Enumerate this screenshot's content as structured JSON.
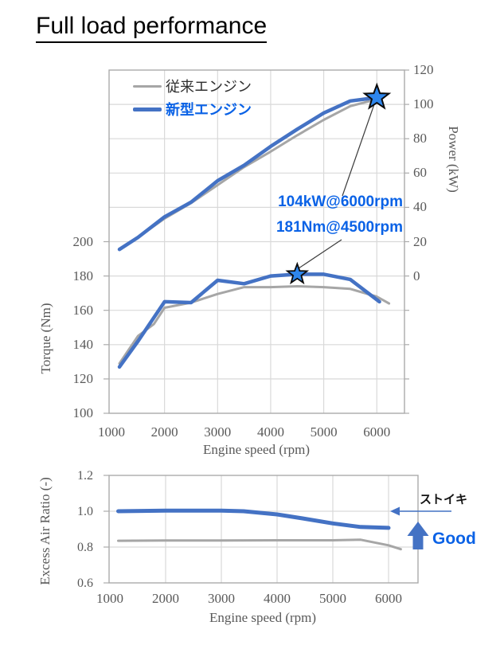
{
  "title": "Full load performance",
  "colors": {
    "new_engine": "#4472C4",
    "old_engine": "#A6A6A6",
    "accent_text": "#0A62E6",
    "star_fill": "#2E86EC",
    "grid": "#D9D9D9",
    "axis": "#ABABAB",
    "tick_text": "#595959"
  },
  "chart_data": [
    {
      "type": "line",
      "title": "",
      "x": {
        "label": "Engine speed (rpm)",
        "ticks": [
          1000,
          2000,
          3000,
          4000,
          5000,
          6000
        ],
        "range": [
          955,
          6525
        ]
      },
      "y_left": {
        "label": "Torque  (Nm)",
        "ticks": [
          200,
          180,
          160,
          140,
          120,
          100
        ],
        "range": [
          100,
          200
        ]
      },
      "y_right": {
        "label": "Power  (kW)",
        "ticks": [
          120,
          100,
          80,
          60,
          40,
          20,
          0
        ],
        "range": [
          0,
          120
        ]
      },
      "legend_position": "top-left-inside",
      "grid": true,
      "series": [
        {
          "name": "従来エンジン",
          "axis": "power",
          "color": "#A6A6A6",
          "points": [
            [
              1150,
              15.5
            ],
            [
              1500,
              22.5
            ],
            [
              2000,
              33.5
            ],
            [
              2500,
              42.5
            ],
            [
              3000,
              53
            ],
            [
              3500,
              63.5
            ],
            [
              4000,
              72.5
            ],
            [
              4500,
              82
            ],
            [
              5000,
              91
            ],
            [
              5500,
              99
            ],
            [
              6000,
              103
            ]
          ]
        },
        {
          "name": "新型エンジン",
          "axis": "power",
          "color": "#4472C4",
          "points": [
            [
              1150,
              15.5
            ],
            [
              1500,
              22.5
            ],
            [
              2000,
              34.5
            ],
            [
              2500,
              43
            ],
            [
              3000,
              55.5
            ],
            [
              3500,
              64.5
            ],
            [
              4000,
              75.5
            ],
            [
              4500,
              85.5
            ],
            [
              5000,
              95
            ],
            [
              5500,
              102
            ],
            [
              6000,
              104
            ]
          ]
        },
        {
          "name": "従来エンジン",
          "axis": "torque",
          "color": "#A6A6A6",
          "points": [
            [
              1150,
              129
            ],
            [
              1500,
              145
            ],
            [
              1800,
              152
            ],
            [
              2000,
              161.5
            ],
            [
              2500,
              164.5
            ],
            [
              3000,
              169.5
            ],
            [
              3500,
              173.5
            ],
            [
              4000,
              173.5
            ],
            [
              4500,
              174
            ],
            [
              5000,
              173.5
            ],
            [
              5500,
              172.5
            ],
            [
              6000,
              168
            ],
            [
              6230,
              164
            ]
          ]
        },
        {
          "name": "新型エンジン",
          "axis": "torque",
          "color": "#4472C4",
          "points": [
            [
              1150,
              127
            ],
            [
              1500,
              142
            ],
            [
              2000,
              165
            ],
            [
              2500,
              164.5
            ],
            [
              3000,
              177.5
            ],
            [
              3500,
              175.5
            ],
            [
              4000,
              180
            ],
            [
              4500,
              181
            ],
            [
              5000,
              181
            ],
            [
              5500,
              178
            ],
            [
              6050,
              165
            ]
          ]
        }
      ],
      "annotations": [
        {
          "text": "104kW@6000rpm",
          "marker": "star",
          "at": {
            "rpm": 6000,
            "power": 104
          }
        },
        {
          "text": "181Nm@4500rpm",
          "marker": "star",
          "at": {
            "rpm": 4500,
            "torque": 181
          }
        }
      ]
    },
    {
      "type": "line",
      "title": "",
      "x": {
        "label": "Engine speed (rpm)",
        "ticks": [
          1000,
          2000,
          3000,
          4000,
          5000,
          6000
        ],
        "range": [
          1000,
          6530
        ]
      },
      "y": {
        "label": "Excess Air Ratio  (-)",
        "ticks": [
          1.2,
          1.0,
          0.8,
          0.6
        ],
        "range": [
          0.6,
          1.2
        ]
      },
      "grid": true,
      "series": [
        {
          "name": "従来エンジン",
          "color": "#A6A6A6",
          "points": [
            [
              1150,
              0.835
            ],
            [
              2000,
              0.837
            ],
            [
              3000,
              0.837
            ],
            [
              4000,
              0.838
            ],
            [
              5000,
              0.838
            ],
            [
              5500,
              0.841
            ],
            [
              6000,
              0.81
            ],
            [
              6220,
              0.788
            ]
          ]
        },
        {
          "name": "新型エンジン",
          "color": "#4472C4",
          "points": [
            [
              1150,
              1.0
            ],
            [
              2000,
              1.003
            ],
            [
              3000,
              1.003
            ],
            [
              3400,
              1.0
            ],
            [
              4000,
              0.982
            ],
            [
              4500,
              0.958
            ],
            [
              5000,
              0.932
            ],
            [
              5500,
              0.912
            ],
            [
              6000,
              0.907
            ]
          ]
        }
      ],
      "annotations": [
        {
          "text": "ストイキ",
          "arrow": "left",
          "at_ratio": 1.0
        },
        {
          "text": "Good",
          "arrow": "up"
        }
      ]
    }
  ]
}
